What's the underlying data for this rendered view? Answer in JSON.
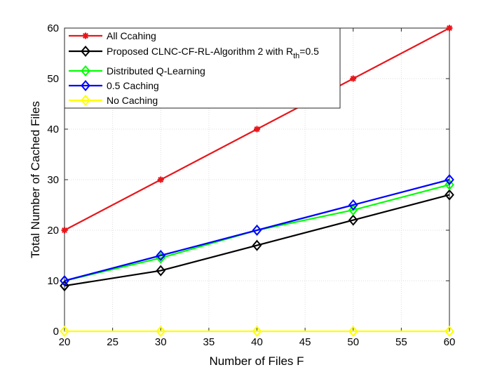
{
  "chart_data": {
    "type": "line",
    "title": "",
    "xlabel": "Number of Files F",
    "ylabel": "Total Number of Cached Files",
    "xlim": [
      20,
      60
    ],
    "ylim": [
      0,
      60
    ],
    "x_ticks": [
      "20",
      "25",
      "30",
      "35",
      "40",
      "45",
      "50",
      "55",
      "60"
    ],
    "y_ticks": [
      "0",
      "10",
      "20",
      "30",
      "40",
      "50",
      "60"
    ],
    "grid": true,
    "legend_position": "top-left",
    "x": [
      20,
      30,
      40,
      50,
      60
    ],
    "series": [
      {
        "name": "All Ccahing",
        "values": [
          20,
          30,
          40,
          50,
          60
        ],
        "color": "#e8161b",
        "marker": "asterisk"
      },
      {
        "name_main": "Proposed CLNC-CF-RL-Algorithm 2 with R",
        "name_sub": "th",
        "name_tail": "=0.5",
        "values": [
          9,
          12,
          17,
          22,
          27
        ],
        "color": "#000000",
        "marker": "diamond"
      },
      {
        "name": "Distributed Q-Learning",
        "values": [
          10,
          14.5,
          20,
          24,
          29
        ],
        "color": "#00ff00",
        "marker": "diamond"
      },
      {
        "name": "0.5 Caching",
        "values": [
          10,
          15,
          20,
          25,
          30
        ],
        "color": "#0000ff",
        "marker": "diamond"
      },
      {
        "name": "No Caching",
        "values": [
          0,
          0,
          0,
          0,
          0
        ],
        "color": "#ffff00",
        "marker": "diamond"
      }
    ]
  }
}
